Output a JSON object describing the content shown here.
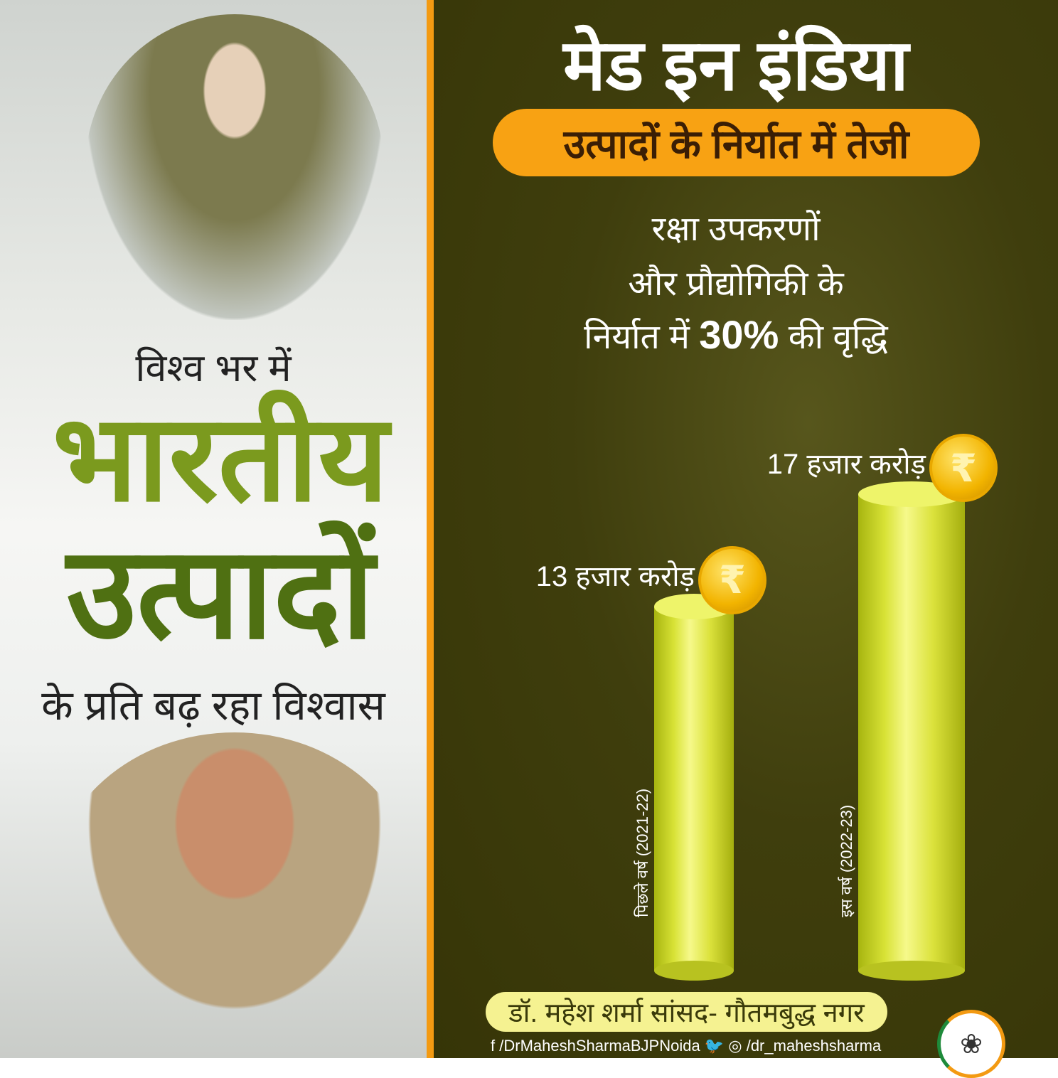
{
  "left": {
    "line1": "विश्व भर में",
    "line2": "भारतीय",
    "line3": "उत्पादों",
    "line4": "के प्रति बढ़ रहा विश्वास"
  },
  "right": {
    "title": "मेड इन इंडिया",
    "banner": "उत्पादों के निर्यात में तेजी",
    "sub1": "रक्षा उपकरणों",
    "sub2": "और प्रौद्योगिकी के",
    "sub3_pre": "निर्यात में",
    "sub3_bold": "30%",
    "sub3_post": "की वृद्धि"
  },
  "chart_data": {
    "type": "bar",
    "categories": [
      "पिछले वर्ष (2021-22)",
      "इस वर्ष (2022-23)"
    ],
    "values": [
      13,
      17
    ],
    "data_labels": [
      "13 हजार करोड़",
      "17 हजार करोड़"
    ],
    "unit": "हजार करोड़",
    "bar_color": "#dbe23c",
    "coin_symbol": "₹"
  },
  "footer": {
    "name": "डॉ. महेश शर्मा सांसद- गौतमबुद्ध नगर",
    "facebook": "/DrMaheshSharmaBJPNoida",
    "handle": "/dr_maheshsharma",
    "logo_symbol": "❀"
  },
  "colors": {
    "accent": "#f39a12",
    "background": "#3f3e0d",
    "green": "#4f7012"
  }
}
